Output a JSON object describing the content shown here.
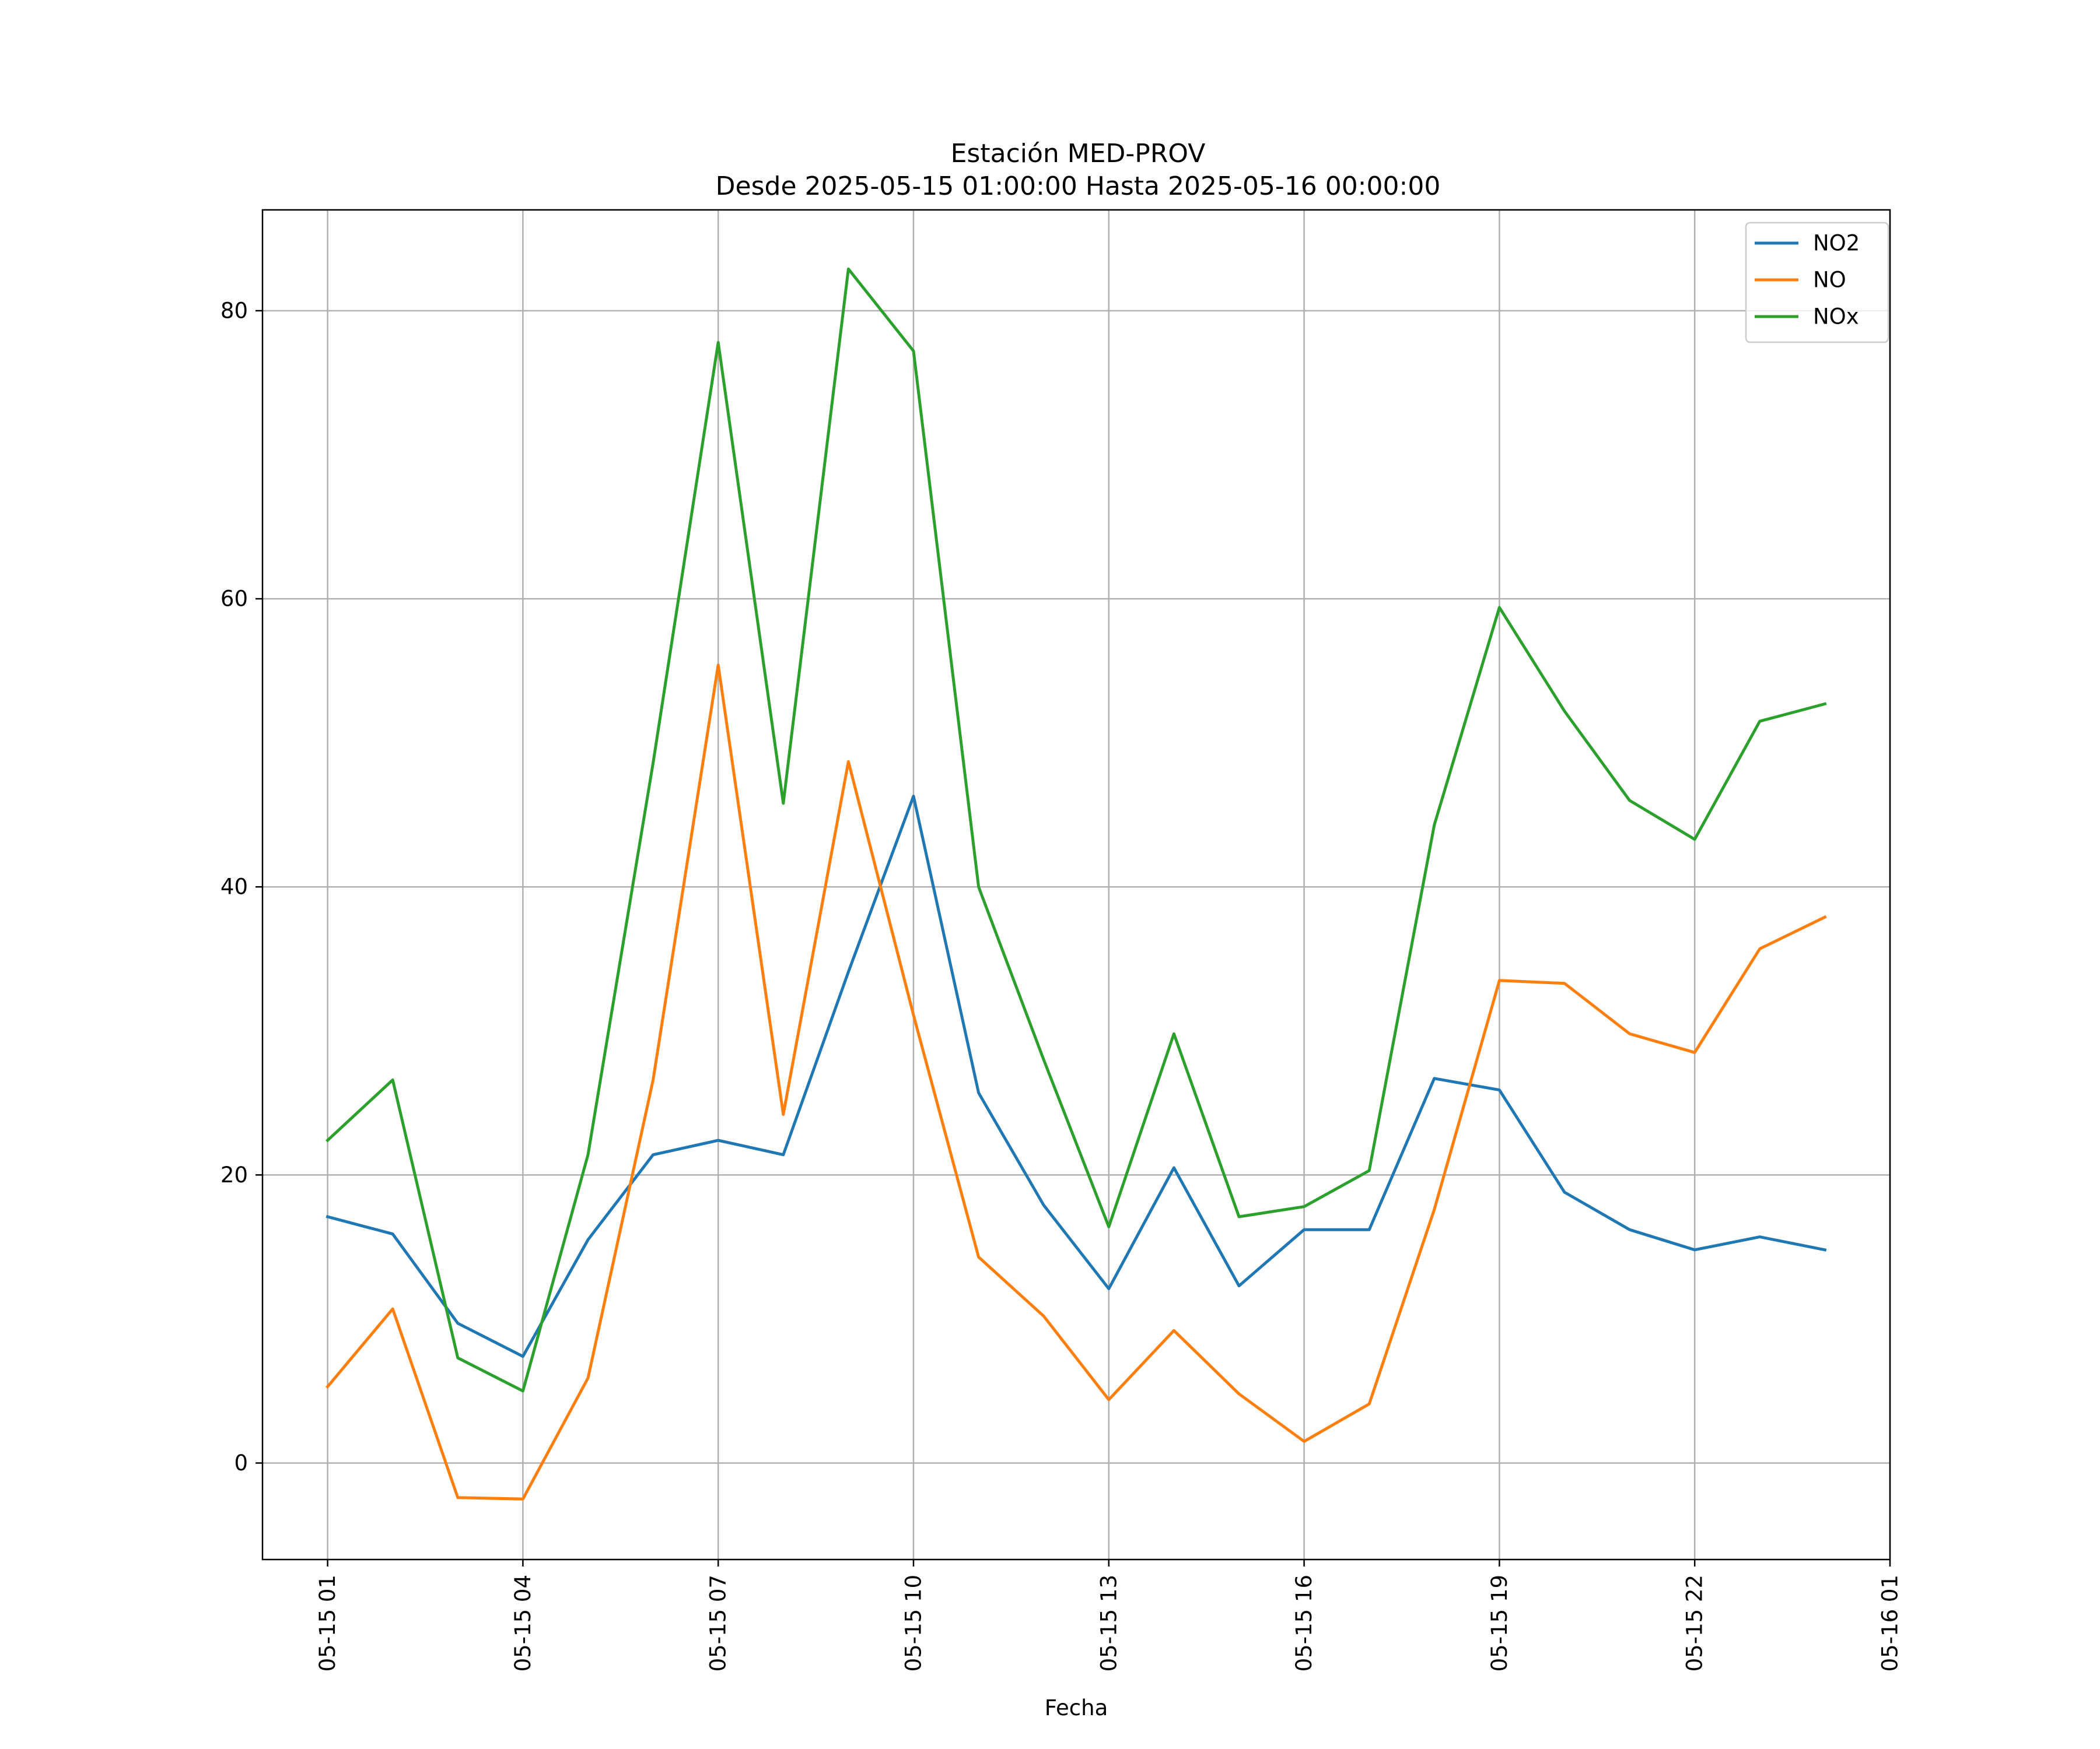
{
  "chart_data": {
    "type": "line",
    "title": [
      "Estación MED-PROV",
      "Desde 2025-05-15 01:00:00 Hasta 2025-05-16 00:00:00"
    ],
    "xlabel": "Fecha",
    "ylabel": "",
    "x": [
      "2025-05-15 01:00",
      "2025-05-15 02:00",
      "2025-05-15 03:00",
      "2025-05-15 04:00",
      "2025-05-15 05:00",
      "2025-05-15 06:00",
      "2025-05-15 07:00",
      "2025-05-15 08:00",
      "2025-05-15 09:00",
      "2025-05-15 10:00",
      "2025-05-15 11:00",
      "2025-05-15 12:00",
      "2025-05-15 13:00",
      "2025-05-15 14:00",
      "2025-05-15 15:00",
      "2025-05-15 16:00",
      "2025-05-15 17:00",
      "2025-05-15 18:00",
      "2025-05-15 19:00",
      "2025-05-15 20:00",
      "2025-05-15 21:00",
      "2025-05-15 22:00",
      "2025-05-15 23:00",
      "2025-05-16 00:00"
    ],
    "xlim": [
      "2025-05-15 00:00",
      "2025-05-16 01:00"
    ],
    "ylim": [
      -6.7,
      87
    ],
    "x_ticks": [
      {
        "label": "05-15 01",
        "value": "2025-05-15 01:00"
      },
      {
        "label": "05-15 04",
        "value": "2025-05-15 04:00"
      },
      {
        "label": "05-15 07",
        "value": "2025-05-15 07:00"
      },
      {
        "label": "05-15 10",
        "value": "2025-05-15 10:00"
      },
      {
        "label": "05-15 13",
        "value": "2025-05-15 13:00"
      },
      {
        "label": "05-15 16",
        "value": "2025-05-15 16:00"
      },
      {
        "label": "05-15 19",
        "value": "2025-05-15 19:00"
      },
      {
        "label": "05-15 22",
        "value": "2025-05-15 22:00"
      },
      {
        "label": "05-16 01",
        "value": "2025-05-16 01:00"
      }
    ],
    "y_ticks": [
      0,
      20,
      40,
      60,
      80
    ],
    "grid": true,
    "legend_position": "top-right",
    "series": [
      {
        "name": "NO2",
        "color": "#1f77b4",
        "values": [
          17.1,
          15.9,
          9.7,
          7.4,
          15.5,
          21.4,
          22.4,
          21.4,
          34.1,
          46.3,
          25.7,
          17.9,
          12.1,
          20.5,
          12.3,
          16.2,
          16.2,
          26.7,
          25.9,
          18.8,
          16.2,
          14.8,
          15.7,
          14.8
        ]
      },
      {
        "name": "NO",
        "color": "#ff7f0e",
        "values": [
          5.3,
          10.7,
          -2.4,
          -2.5,
          5.9,
          26.6,
          55.4,
          24.2,
          48.7,
          31.1,
          14.3,
          10.2,
          4.4,
          9.2,
          4.8,
          1.5,
          4.1,
          17.6,
          33.5,
          33.3,
          29.8,
          28.5,
          35.7,
          37.9
        ]
      },
      {
        "name": "NOx",
        "color": "#2ca02c",
        "values": [
          22.4,
          26.6,
          7.3,
          5.0,
          21.4,
          48.6,
          77.8,
          45.8,
          82.9,
          77.2,
          40.0,
          28.0,
          16.4,
          29.8,
          17.1,
          17.8,
          20.3,
          44.3,
          59.4,
          52.2,
          46.0,
          43.3,
          51.5,
          52.7
        ]
      }
    ]
  }
}
